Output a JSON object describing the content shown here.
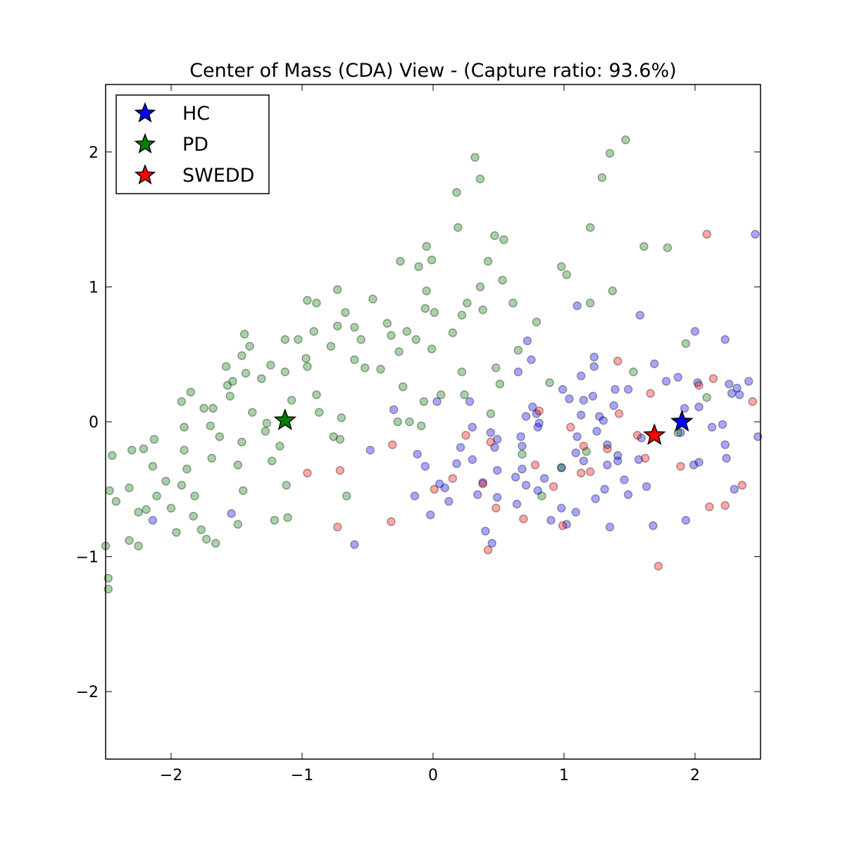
{
  "chart_data": {
    "type": "scatter",
    "title": "Center of Mass (CDA) View - (Capture ratio: 93.6%)",
    "xlim": [
      -2.5,
      2.5
    ],
    "ylim": [
      -2.5,
      2.5
    ],
    "xticks": [
      {
        "value": -2,
        "label": "−2"
      },
      {
        "value": -1,
        "label": "−1"
      },
      0,
      1,
      2
    ],
    "yticks": [
      {
        "value": -2,
        "label": "−2"
      },
      {
        "value": -1,
        "label": "−1"
      },
      0,
      1,
      2
    ],
    "grid": false,
    "legend": "upper left",
    "alpha": 0.35,
    "series": [
      {
        "name": "HC",
        "color": "#0000ff",
        "centroid": {
          "x": 1.9,
          "y": 0.0
        },
        "x": [
          -2.14,
          -1.54,
          -0.48,
          -0.6,
          -0.3,
          0.03,
          -0.12,
          -0.06,
          -0.14,
          -0.02,
          0.05,
          0.12,
          0.09,
          0.18,
          0.21,
          0.28,
          0.3,
          0.3,
          0.34,
          0.38,
          0.4,
          0.45,
          0.44,
          0.49,
          0.47,
          0.49,
          0.49,
          0.65,
          0.63,
          0.64,
          0.67,
          0.68,
          0.68,
          0.71,
          0.72,
          0.75,
          0.71,
          0.76,
          0.79,
          0.8,
          0.81,
          0.8,
          0.85,
          0.9,
          0.98,
          1.02,
          0.99,
          1.04,
          1.1,
          1.09,
          1.09,
          1.1,
          1.13,
          1.15,
          1.13,
          1.15,
          1.22,
          1.23,
          1.23,
          1.25,
          1.27,
          1.3,
          1.33,
          1.33,
          1.31,
          1.35,
          1.24,
          1.39,
          1.38,
          1.41,
          1.41,
          1.46,
          1.49,
          1.49,
          1.58,
          1.59,
          1.57,
          1.63,
          1.69,
          1.68,
          1.78,
          1.87,
          1.89,
          1.92,
          1.93,
          2.0,
          2.02,
          2.03,
          1.99,
          2.03,
          2.13,
          2.21,
          2.23,
          2.23,
          2.24,
          2.26,
          2.28,
          2.32,
          2.34,
          2.3,
          2.41,
          2.46,
          2.48,
          0.98
        ],
        "y": [
          -0.73,
          -0.68,
          -0.21,
          -0.91,
          0.09,
          0.15,
          -0.24,
          -0.33,
          -0.55,
          -0.69,
          -0.46,
          -0.59,
          -0.49,
          -0.31,
          -0.19,
          0.15,
          -0.04,
          -0.28,
          -0.54,
          -0.45,
          -0.81,
          -0.9,
          -0.08,
          -0.13,
          -0.19,
          -0.36,
          -0.56,
          0.37,
          -0.41,
          -0.61,
          -0.11,
          -0.18,
          -0.35,
          -0.47,
          0.6,
          0.46,
          0.04,
          0.11,
          0.06,
          -0.04,
          -0.01,
          -0.51,
          -0.42,
          -0.73,
          -0.64,
          -0.76,
          0.24,
          0.17,
          -0.11,
          -0.23,
          -0.67,
          0.86,
          0.34,
          0.16,
          0.05,
          -0.29,
          0.19,
          0.48,
          0.41,
          -0.07,
          0.04,
          0.01,
          -0.17,
          -0.32,
          -0.5,
          -0.78,
          -0.57,
          0.24,
          0.12,
          -0.25,
          -0.29,
          -0.43,
          -0.54,
          0.24,
          0.79,
          -0.12,
          -0.28,
          -0.48,
          0.43,
          -0.77,
          0.3,
          0.33,
          -0.08,
          0.1,
          -0.73,
          0.67,
          0.29,
          0.11,
          -0.32,
          -0.3,
          -0.04,
          -0.02,
          0.61,
          -0.17,
          -0.27,
          0.28,
          0.21,
          0.25,
          0.2,
          -0.5,
          0.3,
          1.39,
          -0.11,
          -0.34
        ]
      },
      {
        "name": "PD",
        "color": "#008000",
        "centroid": {
          "x": -1.13,
          "y": 0.01
        },
        "x": [
          -2.45,
          -2.47,
          -2.48,
          -2.48,
          -2.5,
          -2.42,
          -2.32,
          -2.3,
          -2.21,
          -2.13,
          -2.14,
          -2.25,
          -2.25,
          -2.32,
          -2.19,
          -2.11,
          -2.04,
          -2.0,
          -1.96,
          -1.92,
          -1.85,
          -1.9,
          -1.9,
          -1.88,
          -1.92,
          -1.82,
          -1.83,
          -1.77,
          -1.73,
          -1.66,
          -1.75,
          -1.68,
          -1.7,
          -1.63,
          -1.69,
          -1.58,
          -1.57,
          -1.53,
          -1.55,
          -1.44,
          -1.43,
          -1.46,
          -1.4,
          -1.38,
          -1.46,
          -1.49,
          -1.45,
          -1.49,
          -1.31,
          -1.24,
          -1.27,
          -1.28,
          -1.23,
          -1.21,
          -1.13,
          -1.13,
          -1.08,
          -1.17,
          -1.12,
          -1.11,
          -1.03,
          -0.97,
          -0.96,
          -0.91,
          -0.96,
          -0.89,
          -0.78,
          -0.73,
          -0.73,
          -0.67,
          -0.89,
          -0.87,
          -0.76,
          -0.71,
          -0.7,
          -0.66,
          -0.6,
          -0.6,
          -0.55,
          -0.52,
          -0.46,
          -0.4,
          -0.35,
          -0.32,
          -0.25,
          -0.26,
          -0.2,
          -0.23,
          -0.27,
          -0.11,
          -0.05,
          -0.01,
          -0.05,
          -0.06,
          0.01,
          -0.01,
          -0.13,
          -0.07,
          -0.09,
          -0.18,
          0.06,
          0.18,
          0.32,
          0.36,
          0.19,
          0.15,
          0.22,
          0.26,
          0.22,
          0.24,
          0.42,
          0.36,
          0.38,
          0.47,
          0.54,
          0.53,
          0.48,
          0.51,
          0.44,
          0.61,
          0.65,
          0.68,
          0.79,
          0.89,
          0.98,
          1.02,
          1.2,
          1.2,
          1.17,
          1.29,
          1.35,
          1.37,
          1.47,
          1.53,
          1.61,
          1.79,
          1.93,
          2.09,
          1.87,
          0.83,
          0.98
        ],
        "y": [
          -0.25,
          -0.51,
          -1.16,
          -1.24,
          -0.92,
          -0.59,
          -0.49,
          -0.21,
          -0.2,
          -0.13,
          -0.33,
          -0.67,
          -0.92,
          -0.88,
          -0.65,
          -0.55,
          -0.44,
          -0.64,
          -0.82,
          0.15,
          0.22,
          -0.04,
          -0.21,
          -0.35,
          -0.47,
          -0.55,
          -0.7,
          -0.8,
          -0.87,
          -0.9,
          0.1,
          0.1,
          -0.03,
          -0.11,
          -0.27,
          0.41,
          0.27,
          0.3,
          0.19,
          0.65,
          0.36,
          0.49,
          0.56,
          0.07,
          -0.15,
          -0.32,
          -0.51,
          -0.76,
          0.32,
          0.42,
          -0.01,
          -0.07,
          -0.29,
          -0.73,
          0.61,
          0.37,
          0.16,
          -0.18,
          -0.47,
          -0.71,
          0.61,
          0.47,
          0.41,
          0.67,
          0.9,
          0.88,
          0.56,
          0.71,
          0.98,
          0.81,
          0.2,
          0.07,
          -0.11,
          -0.13,
          0.03,
          -0.55,
          0.7,
          0.46,
          0.61,
          0.4,
          0.91,
          0.39,
          0.73,
          0.64,
          1.19,
          0.52,
          0.67,
          0.26,
          0.0,
          1.15,
          1.3,
          1.2,
          0.97,
          0.84,
          0.81,
          0.54,
          0.61,
          0.15,
          -0.03,
          0.0,
          0.2,
          1.7,
          1.96,
          1.8,
          1.44,
          0.66,
          0.79,
          0.88,
          0.37,
          0.2,
          1.19,
          1.0,
          0.83,
          1.38,
          1.35,
          1.05,
          0.4,
          0.28,
          0.06,
          0.88,
          0.53,
          -0.24,
          0.74,
          0.29,
          1.15,
          1.09,
          1.44,
          0.88,
          -0.22,
          1.81,
          1.99,
          0.97,
          2.09,
          0.37,
          1.3,
          1.29,
          0.58,
          0.18,
          -0.08,
          -0.55,
          -0.34
        ]
      },
      {
        "name": "SWEDD",
        "color": "#ff0000",
        "centroid": {
          "x": 1.69,
          "y": -0.1
        },
        "x": [
          -0.96,
          -0.73,
          -0.71,
          -0.31,
          -0.32,
          0.01,
          0.15,
          0.25,
          0.38,
          0.42,
          0.44,
          0.48,
          0.69,
          0.78,
          0.81,
          0.92,
          0.99,
          1.05,
          1.13,
          1.15,
          1.2,
          1.33,
          1.41,
          1.42,
          1.62,
          1.66,
          1.72,
          1.89,
          2.03,
          2.09,
          2.11,
          2.14,
          2.23,
          2.36,
          2.44,
          1.56
        ],
        "y": [
          -0.38,
          -0.78,
          -0.36,
          -0.17,
          -0.74,
          -0.5,
          -0.42,
          -0.1,
          -0.46,
          -0.95,
          -0.15,
          -0.64,
          -0.72,
          -0.32,
          0.08,
          -0.48,
          -0.77,
          -0.04,
          -0.38,
          -0.18,
          -0.37,
          -0.2,
          0.45,
          0.06,
          -0.27,
          0.21,
          -1.07,
          -0.33,
          0.27,
          1.39,
          -0.63,
          0.32,
          -0.62,
          -0.47,
          0.15,
          -0.1
        ]
      }
    ]
  }
}
